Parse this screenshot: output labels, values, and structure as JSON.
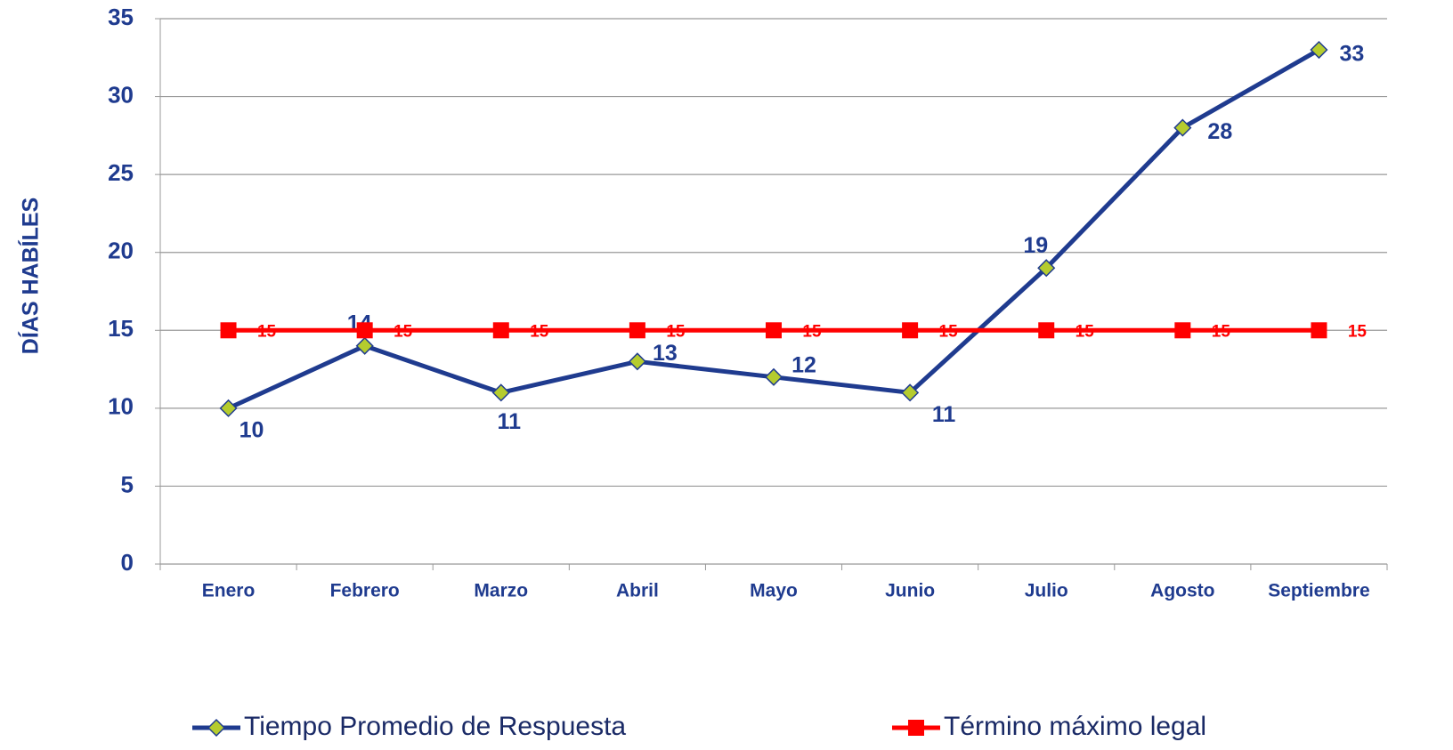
{
  "chart_data": {
    "type": "line",
    "y_label": "DÍAS HABÍLES",
    "categories": [
      "Enero",
      "Febrero",
      "Marzo",
      "Abril",
      "Mayo",
      "Junio",
      "Julio",
      "Agosto",
      "Septiembre"
    ],
    "series": [
      {
        "name": "Tiempo Promedio de Respuesta",
        "color": "#1f3b8f",
        "marker": "diamond",
        "marker_color": "#b5cc2e",
        "values": [
          10,
          14,
          11,
          13,
          12,
          11,
          19,
          28,
          33
        ]
      },
      {
        "name": "Término máximo legal",
        "color": "#ff0000",
        "marker": "square",
        "marker_color": "#ff0000",
        "values": [
          15,
          15,
          15,
          15,
          15,
          15,
          15,
          15,
          15
        ]
      }
    ],
    "ylim": [
      0,
      35
    ],
    "yticks": [
      0,
      5,
      10,
      15,
      20,
      25,
      30,
      35
    ],
    "grid": true,
    "legend": "bottom"
  }
}
